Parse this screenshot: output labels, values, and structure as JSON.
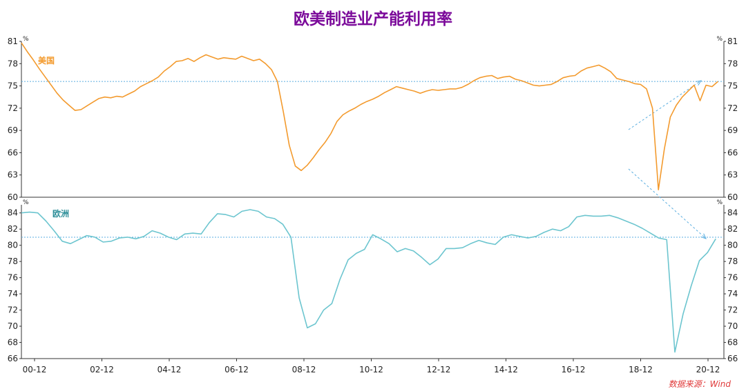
{
  "page": {
    "title": "欧美制造业产能利用率",
    "source": "数据来源：Wind"
  },
  "chart_data": [
    {
      "type": "line",
      "series": [
        {
          "name": "美国",
          "color": "#f39a2d",
          "points": [
            [
              0.0,
              80.8
            ],
            [
              0.25,
              79.6
            ],
            [
              0.5,
              78.5
            ],
            [
              0.75,
              77.3
            ],
            [
              1.0,
              76.2
            ],
            [
              1.25,
              75.1
            ],
            [
              1.5,
              74.0
            ],
            [
              1.75,
              73.1
            ],
            [
              2.0,
              72.4
            ],
            [
              2.25,
              71.7
            ],
            [
              2.5,
              71.8
            ],
            [
              2.75,
              72.3
            ],
            [
              3.0,
              72.8
            ],
            [
              3.25,
              73.3
            ],
            [
              3.5,
              73.5
            ],
            [
              3.75,
              73.4
            ],
            [
              4.0,
              73.6
            ],
            [
              4.25,
              73.5
            ],
            [
              4.5,
              73.9
            ],
            [
              4.75,
              74.3
            ],
            [
              5.0,
              74.9
            ],
            [
              5.25,
              75.3
            ],
            [
              5.5,
              75.7
            ],
            [
              5.75,
              76.2
            ],
            [
              6.0,
              77.0
            ],
            [
              6.25,
              77.6
            ],
            [
              6.5,
              78.3
            ],
            [
              6.75,
              78.4
            ],
            [
              7.0,
              78.7
            ],
            [
              7.25,
              78.3
            ],
            [
              7.5,
              78.8
            ],
            [
              7.75,
              79.2
            ],
            [
              8.0,
              78.9
            ],
            [
              8.25,
              78.6
            ],
            [
              8.5,
              78.8
            ],
            [
              8.75,
              78.7
            ],
            [
              9.0,
              78.6
            ],
            [
              9.25,
              79.0
            ],
            [
              9.5,
              78.7
            ],
            [
              9.75,
              78.4
            ],
            [
              10.0,
              78.6
            ],
            [
              10.25,
              78.0
            ],
            [
              10.5,
              77.2
            ],
            [
              10.75,
              75.6
            ],
            [
              11.0,
              71.5
            ],
            [
              11.25,
              67.0
            ],
            [
              11.5,
              64.2
            ],
            [
              11.75,
              63.6
            ],
            [
              12.0,
              64.3
            ],
            [
              12.25,
              65.3
            ],
            [
              12.5,
              66.4
            ],
            [
              12.75,
              67.4
            ],
            [
              13.0,
              68.6
            ],
            [
              13.25,
              70.2
            ],
            [
              13.5,
              71.1
            ],
            [
              13.75,
              71.6
            ],
            [
              14.0,
              72.0
            ],
            [
              14.25,
              72.5
            ],
            [
              14.5,
              72.9
            ],
            [
              14.75,
              73.2
            ],
            [
              15.0,
              73.6
            ],
            [
              15.25,
              74.1
            ],
            [
              15.5,
              74.5
            ],
            [
              15.75,
              74.9
            ],
            [
              16.0,
              74.7
            ],
            [
              16.25,
              74.5
            ],
            [
              16.5,
              74.3
            ],
            [
              16.75,
              74.0
            ],
            [
              17.0,
              74.3
            ],
            [
              17.25,
              74.5
            ],
            [
              17.5,
              74.4
            ],
            [
              17.75,
              74.5
            ],
            [
              18.0,
              74.6
            ],
            [
              18.25,
              74.6
            ],
            [
              18.5,
              74.8
            ],
            [
              18.75,
              75.2
            ],
            [
              19.0,
              75.7
            ],
            [
              19.25,
              76.1
            ],
            [
              19.5,
              76.3
            ],
            [
              19.75,
              76.4
            ],
            [
              20.0,
              76.0
            ],
            [
              20.25,
              76.2
            ],
            [
              20.5,
              76.3
            ],
            [
              20.75,
              75.9
            ],
            [
              21.0,
              75.7
            ],
            [
              21.25,
              75.4
            ],
            [
              21.5,
              75.1
            ],
            [
              21.75,
              75.0
            ],
            [
              22.0,
              75.1
            ],
            [
              22.25,
              75.2
            ],
            [
              22.5,
              75.6
            ],
            [
              22.75,
              76.1
            ],
            [
              23.0,
              76.3
            ],
            [
              23.25,
              76.4
            ],
            [
              23.5,
              77.0
            ],
            [
              23.75,
              77.4
            ],
            [
              24.0,
              77.6
            ],
            [
              24.25,
              77.8
            ],
            [
              24.5,
              77.4
            ],
            [
              24.75,
              76.9
            ],
            [
              25.0,
              76.0
            ],
            [
              25.25,
              75.8
            ],
            [
              25.5,
              75.6
            ],
            [
              25.75,
              75.3
            ],
            [
              26.0,
              75.2
            ],
            [
              26.25,
              74.6
            ],
            [
              26.5,
              72.0
            ],
            [
              26.75,
              61.0
            ],
            [
              27.0,
              66.5
            ],
            [
              27.25,
              70.8
            ],
            [
              27.5,
              72.4
            ],
            [
              27.75,
              73.5
            ],
            [
              28.0,
              74.3
            ],
            [
              28.25,
              75.1
            ],
            [
              28.5,
              73.0
            ],
            [
              28.75,
              75.1
            ],
            [
              29.0,
              74.9
            ],
            [
              29.25,
              75.6
            ]
          ]
        }
      ],
      "ylim": [
        60,
        81
      ],
      "yticks": [
        60,
        63,
        66,
        69,
        72,
        75,
        78,
        81
      ],
      "yunit": "%",
      "reference_line": 75.6
    },
    {
      "type": "line",
      "series": [
        {
          "name": "欧洲",
          "color": "#6cc5cf",
          "points": [
            [
              0.0,
              84.0
            ],
            [
              0.5,
              84.1
            ],
            [
              1.0,
              84.0
            ],
            [
              1.5,
              83.0
            ],
            [
              2.0,
              81.8
            ],
            [
              2.5,
              80.5
            ],
            [
              3.0,
              80.2
            ],
            [
              3.5,
              80.7
            ],
            [
              4.0,
              81.2
            ],
            [
              4.5,
              81.0
            ],
            [
              5.0,
              80.4
            ],
            [
              5.5,
              80.5
            ],
            [
              6.0,
              80.9
            ],
            [
              6.5,
              81.0
            ],
            [
              7.0,
              80.8
            ],
            [
              7.5,
              81.1
            ],
            [
              8.0,
              81.8
            ],
            [
              8.5,
              81.5
            ],
            [
              9.0,
              81.0
            ],
            [
              9.5,
              80.7
            ],
            [
              10.0,
              81.4
            ],
            [
              10.5,
              81.5
            ],
            [
              11.0,
              81.4
            ],
            [
              11.5,
              82.8
            ],
            [
              12.0,
              83.9
            ],
            [
              12.5,
              83.8
            ],
            [
              13.0,
              83.5
            ],
            [
              13.5,
              84.2
            ],
            [
              14.0,
              84.4
            ],
            [
              14.5,
              84.2
            ],
            [
              15.0,
              83.5
            ],
            [
              15.5,
              83.3
            ],
            [
              16.0,
              82.6
            ],
            [
              16.5,
              81.0
            ],
            [
              17.0,
              73.5
            ],
            [
              17.5,
              69.8
            ],
            [
              18.0,
              70.3
            ],
            [
              18.5,
              72.0
            ],
            [
              19.0,
              72.8
            ],
            [
              19.5,
              75.8
            ],
            [
              20.0,
              78.2
            ],
            [
              20.5,
              79.0
            ],
            [
              21.0,
              79.5
            ],
            [
              21.5,
              81.3
            ],
            [
              22.0,
              80.8
            ],
            [
              22.5,
              80.2
            ],
            [
              23.0,
              79.2
            ],
            [
              23.5,
              79.6
            ],
            [
              24.0,
              79.3
            ],
            [
              24.5,
              78.5
            ],
            [
              25.0,
              77.6
            ],
            [
              25.5,
              78.3
            ],
            [
              26.0,
              79.6
            ],
            [
              26.5,
              79.6
            ],
            [
              27.0,
              79.7
            ],
            [
              27.5,
              80.2
            ],
            [
              28.0,
              80.6
            ],
            [
              28.5,
              80.3
            ],
            [
              29.0,
              80.1
            ],
            [
              29.5,
              81.0
            ],
            [
              30.0,
              81.3
            ],
            [
              30.5,
              81.1
            ],
            [
              31.0,
              80.9
            ],
            [
              31.5,
              81.1
            ],
            [
              32.0,
              81.6
            ],
            [
              32.5,
              82.0
            ],
            [
              33.0,
              81.8
            ],
            [
              33.5,
              82.3
            ],
            [
              34.0,
              83.5
            ],
            [
              34.5,
              83.7
            ],
            [
              35.0,
              83.6
            ],
            [
              35.5,
              83.6
            ],
            [
              36.0,
              83.7
            ],
            [
              36.5,
              83.4
            ],
            [
              37.0,
              83.0
            ],
            [
              37.5,
              82.6
            ],
            [
              38.0,
              82.1
            ],
            [
              38.5,
              81.5
            ],
            [
              39.0,
              80.9
            ],
            [
              39.5,
              80.7
            ],
            [
              40.0,
              66.8
            ],
            [
              40.5,
              71.5
            ],
            [
              41.0,
              75.0
            ],
            [
              41.5,
              78.1
            ],
            [
              42.0,
              79.1
            ],
            [
              42.5,
              80.8
            ]
          ]
        }
      ],
      "ylim": [
        66,
        85
      ],
      "yticks": [
        66,
        68,
        70,
        72,
        74,
        76,
        78,
        80,
        82,
        84
      ],
      "yunit": "%",
      "reference_line": 81.0
    }
  ],
  "x_axis": {
    "ticks": [
      "00-12",
      "02-12",
      "04-12",
      "06-12",
      "08-12",
      "10-12",
      "12-12",
      "14-12",
      "16-12",
      "18-12",
      "20-12"
    ]
  }
}
